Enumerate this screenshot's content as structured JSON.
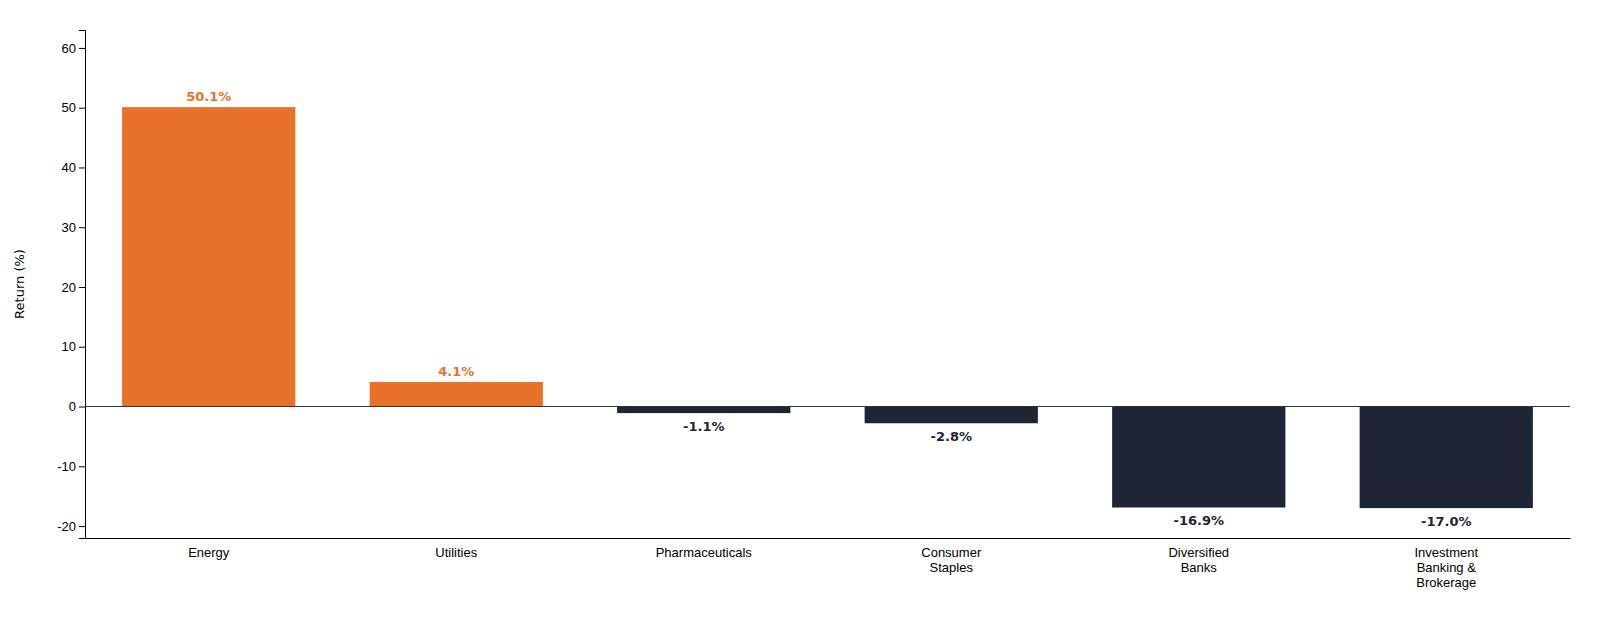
{
  "chart_data": {
    "type": "bar",
    "categories": [
      "Energy",
      "Utilities",
      "Pharmaceuticals",
      "Consumer\nStaples",
      "Diversified\nBanks",
      "Investment\nBanking &\nBrokerage"
    ],
    "values": [
      50.1,
      4.1,
      -1.1,
      -2.8,
      -16.9,
      -17.0
    ],
    "value_labels": [
      "50.1%",
      "4.1%",
      "-1.1%",
      "-2.8%",
      "-16.9%",
      "-17.0%"
    ],
    "colors": [
      "#E8722A",
      "#E8722A",
      "#1E2535",
      "#1E2535",
      "#1E2535",
      "#1E2535"
    ],
    "ylabel": "Return (%)",
    "ylim": [
      -22,
      63
    ],
    "yticks": [
      -20,
      -10,
      0,
      10,
      20,
      30,
      40,
      50,
      60
    ],
    "grid": false,
    "data_labels": true
  }
}
